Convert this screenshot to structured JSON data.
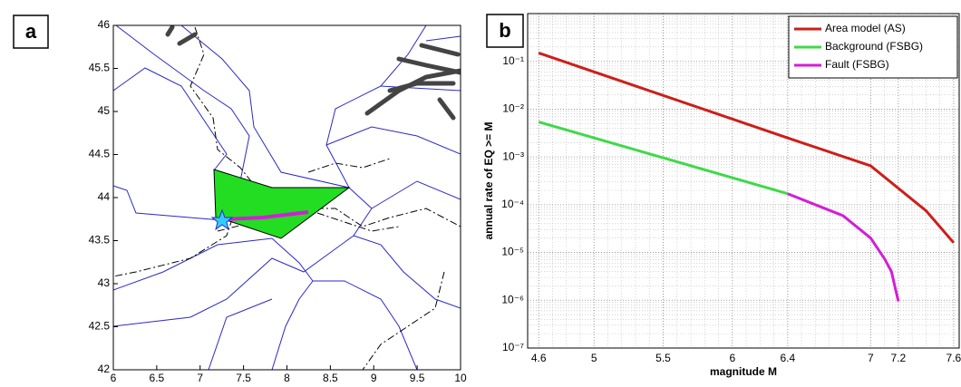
{
  "chart_data": [
    {
      "type": "map",
      "panel_label": "a",
      "xlim": [
        6,
        10
      ],
      "ylim": [
        42,
        46
      ],
      "xticks": [
        6,
        6.5,
        7,
        7.5,
        8,
        8.5,
        9,
        9.5,
        10
      ],
      "yticks": [
        42,
        42.5,
        43,
        43.5,
        44,
        44.5,
        45,
        45.5,
        46
      ]
    },
    {
      "type": "line",
      "panel_label": "b",
      "xlabel": "magnitude M",
      "ylabel": "annual rate of EQ >= M",
      "log_y": true,
      "grid": true,
      "legend": "upper right",
      "xlim": [
        4.52,
        7.64
      ],
      "ylim": [
        1e-07,
        1
      ],
      "xticks": [
        4.6,
        5,
        5.5,
        6,
        6.4,
        7,
        7.2,
        7.6
      ],
      "yticks": [
        {
          "value": 1e-07,
          "label": "10⁻⁷"
        },
        {
          "value": 1e-06,
          "label": "10⁻⁶"
        },
        {
          "value": 1e-05,
          "label": "10⁻⁵"
        },
        {
          "value": 0.0001,
          "label": "10⁻⁴"
        },
        {
          "value": 0.001,
          "label": "10⁻³"
        },
        {
          "value": 0.01,
          "label": "10⁻²"
        },
        {
          "value": 0.1,
          "label": "10⁻¹"
        }
      ],
      "series": [
        {
          "name": "Area model (AS)",
          "color": "#cc1f1a",
          "x": [
            4.6,
            6.4,
            7.0,
            7.4,
            7.6
          ],
          "values": [
            0.15,
            0.0025,
            0.00065,
            7.5e-05,
            1.6e-05
          ]
        },
        {
          "name": "Background (FSBG)",
          "color": "#3fd94a",
          "x": [
            4.6,
            6.4
          ],
          "values": [
            0.0054,
            0.00017
          ]
        },
        {
          "name": "Fault (FSBG)",
          "color": "#d21ed6",
          "x": [
            6.4,
            6.8,
            7.0,
            7.1,
            7.15,
            7.2
          ],
          "values": [
            0.00017,
            5.9e-05,
            2e-05,
            7.4e-06,
            4e-06,
            9.5e-07
          ]
        }
      ]
    }
  ]
}
